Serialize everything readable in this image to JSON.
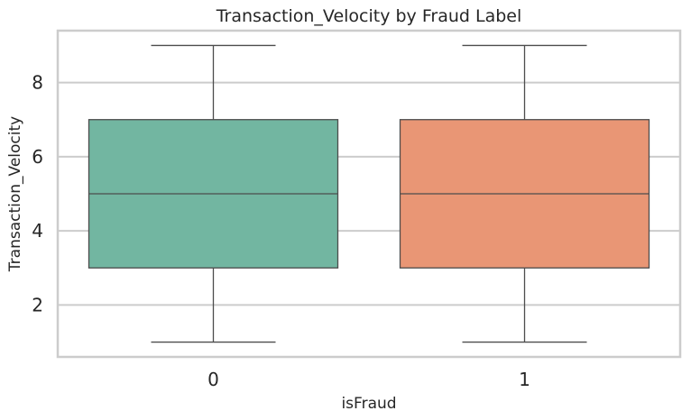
{
  "chart_data": {
    "type": "box",
    "title": "Transaction_Velocity by Fraud Label",
    "xlabel": "isFraud",
    "ylabel": "Transaction_Velocity",
    "categories": [
      "0",
      "1"
    ],
    "ylim": [
      0.6,
      9.4
    ],
    "yticks": [
      2,
      4,
      6,
      8
    ],
    "grid": true,
    "boxes": [
      {
        "category": "0",
        "whisker_low": 1,
        "q1": 3,
        "median": 5,
        "q3": 7,
        "whisker_high": 9,
        "color": "#72b6a1"
      },
      {
        "category": "1",
        "whisker_low": 1,
        "q1": 3,
        "median": 5,
        "q3": 7,
        "whisker_high": 9,
        "color": "#e99675"
      }
    ]
  }
}
